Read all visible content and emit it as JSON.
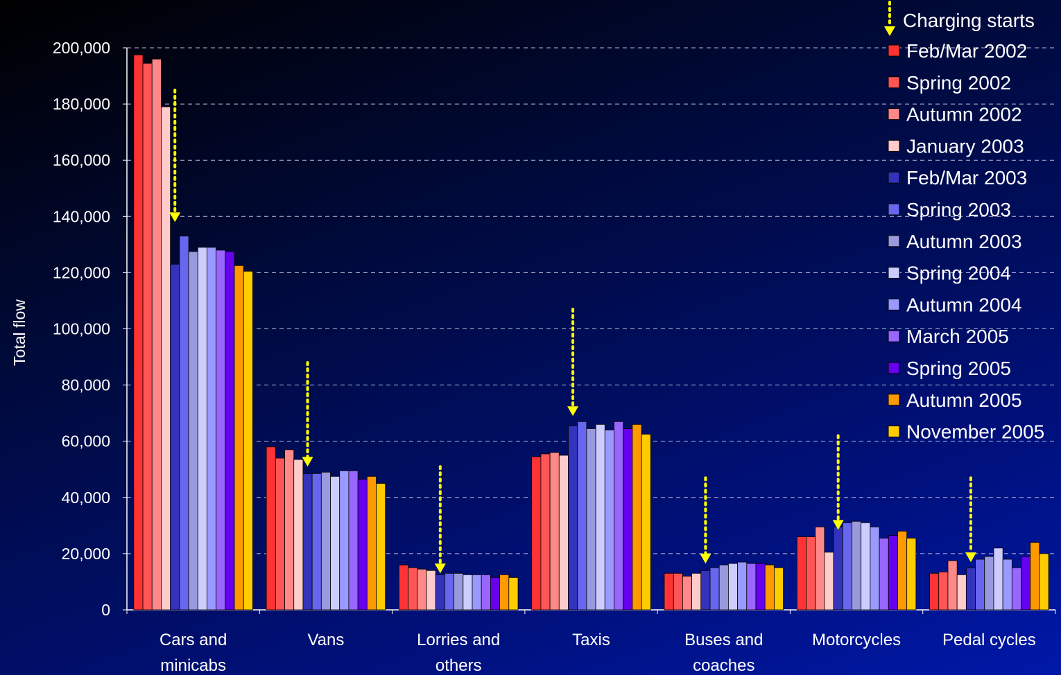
{
  "chart_data": {
    "type": "bar",
    "title": "",
    "xlabel": "",
    "ylabel": "Total flow",
    "ylim": [
      0,
      200000
    ],
    "yticks": [
      0,
      20000,
      40000,
      60000,
      80000,
      100000,
      120000,
      140000,
      160000,
      180000,
      200000
    ],
    "ytick_labels": [
      "0",
      "20,000",
      "40,000",
      "60,000",
      "80,000",
      "100,000",
      "120,000",
      "140,000",
      "160,000",
      "180,000",
      "200,000"
    ],
    "grid": "dashed horizontal",
    "legend_placement": "top-right",
    "categories": [
      [
        "Cars and",
        "minicabs"
      ],
      [
        "Vans"
      ],
      [
        "Lorries and",
        "others"
      ],
      [
        "Taxis"
      ],
      [
        "Buses and",
        "coaches"
      ],
      [
        "Motorcycles"
      ],
      [
        "Pedal cycles"
      ]
    ],
    "annotation": {
      "label": "Charging starts",
      "color": "#ffff00",
      "marker": "dotted-down-arrow",
      "arrows": [
        {
          "category_index": 0,
          "from": 185000,
          "to": 138000
        },
        {
          "category_index": 1,
          "from": 88000,
          "to": 51000
        },
        {
          "category_index": 2,
          "from": 51000,
          "to": 13000
        },
        {
          "category_index": 3,
          "from": 107000,
          "to": 69000
        },
        {
          "category_index": 4,
          "from": 47000,
          "to": 16500
        },
        {
          "category_index": 5,
          "from": 62000,
          "to": 28500
        },
        {
          "category_index": 6,
          "from": 47000,
          "to": 17000
        }
      ]
    },
    "series": [
      {
        "name": "Feb/Mar 2002",
        "color": "#ff3333",
        "values": [
          197500,
          58000,
          16000,
          54500,
          13000,
          26000,
          13000
        ]
      },
      {
        "name": "Spring 2002",
        "color": "#ff5555",
        "values": [
          194500,
          54000,
          15000,
          55500,
          13000,
          26000,
          13500
        ]
      },
      {
        "name": "Autumn 2002",
        "color": "#ff8888",
        "values": [
          196000,
          57000,
          14500,
          56000,
          12000,
          29500,
          17500
        ]
      },
      {
        "name": "January 2003",
        "color": "#ffcccc",
        "values": [
          179000,
          53500,
          14000,
          55000,
          13000,
          20500,
          12500
        ]
      },
      {
        "name": "Feb/Mar 2003",
        "color": "#3333bb",
        "values": [
          123000,
          48500,
          12500,
          65500,
          14000,
          29500,
          15000
        ]
      },
      {
        "name": "Spring 2003",
        "color": "#6666ee",
        "values": [
          133000,
          48500,
          13000,
          67000,
          15000,
          31000,
          18000
        ]
      },
      {
        "name": "Autumn 2003",
        "color": "#9999dd",
        "values": [
          127500,
          49000,
          13000,
          64500,
          16000,
          31500,
          19000
        ]
      },
      {
        "name": "Spring 2004",
        "color": "#ccccff",
        "values": [
          129000,
          47500,
          12500,
          66000,
          16500,
          31000,
          22000
        ]
      },
      {
        "name": "Autumn 2004",
        "color": "#9999ff",
        "values": [
          129000,
          49500,
          12500,
          64000,
          17000,
          29500,
          18000
        ]
      },
      {
        "name": "March 2005",
        "color": "#9966ff",
        "values": [
          128000,
          49500,
          12500,
          67000,
          16500,
          25500,
          15000
        ]
      },
      {
        "name": "Spring 2005",
        "color": "#6600ee",
        "values": [
          127500,
          46500,
          11500,
          64500,
          16500,
          26500,
          19000
        ]
      },
      {
        "name": "Autumn 2005",
        "color": "#ff9900",
        "values": [
          122500,
          47500,
          12500,
          66000,
          16000,
          28000,
          24000
        ]
      },
      {
        "name": "November 2005",
        "color": "#ffcc00",
        "values": [
          120500,
          45000,
          11500,
          62500,
          15000,
          25500,
          20000
        ]
      }
    ]
  }
}
